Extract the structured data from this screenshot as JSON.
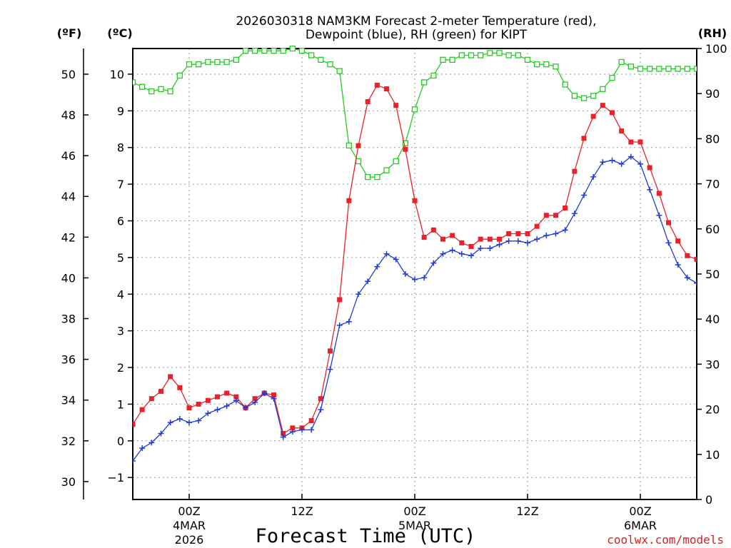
{
  "chart_data": {
    "type": "line",
    "title_line1": "2026030318 NAM3KM Forecast 2-meter Temperature (red),",
    "title_line2": "Dewpoint (blue), RH (green) for KIPT",
    "xlabel": "Forecast Time (UTC)",
    "watermark": "coolwx.com/models",
    "unit_f": "(ºF)",
    "unit_c": "(ºC)",
    "unit_rh": "(RH)",
    "x_start_hour": 18,
    "x_end_hour": 78,
    "c_axis": {
      "range": [
        -1.6,
        10.7
      ],
      "ticks": [
        -1,
        0,
        1,
        2,
        3,
        4,
        5,
        6,
        7,
        8,
        9,
        10
      ],
      "labels": [
        "−1",
        "0",
        "1",
        "2",
        "3",
        "4",
        "5",
        "6",
        "7",
        "8",
        "9",
        "10"
      ]
    },
    "f_axis": {
      "ticks": [
        30,
        32,
        34,
        36,
        38,
        40,
        42,
        44,
        46,
        48,
        50
      ],
      "labels": [
        "30",
        "32",
        "34",
        "36",
        "38",
        "40",
        "42",
        "44",
        "46",
        "48",
        "50"
      ]
    },
    "rh_axis": {
      "range": [
        0,
        100
      ],
      "ticks": [
        0,
        10,
        20,
        30,
        40,
        50,
        60,
        70,
        80,
        90,
        100
      ],
      "labels": [
        "0",
        "10",
        "20",
        "30",
        "40",
        "50",
        "60",
        "70",
        "80",
        "90",
        "100"
      ]
    },
    "x_ticks": [
      {
        "hour": 24,
        "line1": "00Z",
        "line2": "4MAR",
        "line3": "2026"
      },
      {
        "hour": 36,
        "line1": "12Z",
        "line2": "",
        "line3": ""
      },
      {
        "hour": 48,
        "line1": "00Z",
        "line2": "5MAR",
        "line3": ""
      },
      {
        "hour": 60,
        "line1": "12Z",
        "line2": "",
        "line3": ""
      },
      {
        "hour": 72,
        "line1": "00Z",
        "line2": "6MAR",
        "line3": ""
      }
    ],
    "colors": {
      "temperature": "#e8222a",
      "dewpoint": "#1f3bd8",
      "rh": "#22cc22",
      "grid": "#9a9a9a",
      "watermark": "#d62020"
    },
    "series": [
      {
        "name": "Temperature",
        "axis": "c",
        "values": [
          0.45,
          0.85,
          1.15,
          1.35,
          1.75,
          1.45,
          0.9,
          1.0,
          1.1,
          1.2,
          1.3,
          1.2,
          0.9,
          1.15,
          1.3,
          1.25,
          0.2,
          0.35,
          0.35,
          0.55,
          1.15,
          2.45,
          3.85,
          6.55,
          8.05,
          9.25,
          9.7,
          9.6,
          9.15,
          7.95,
          6.55,
          5.55,
          5.75,
          5.5,
          5.6,
          5.4,
          5.3,
          5.5,
          5.5,
          5.5,
          5.65,
          5.65,
          5.65,
          5.85,
          6.15,
          6.15,
          6.35,
          7.35,
          8.25,
          8.85,
          9.15,
          8.95,
          8.45,
          8.15,
          8.15,
          7.45,
          6.75,
          5.95,
          5.45,
          5.05,
          4.95
        ]
      },
      {
        "name": "Dewpoint",
        "axis": "c",
        "values": [
          -0.55,
          -0.2,
          -0.05,
          0.2,
          0.5,
          0.6,
          0.5,
          0.55,
          0.75,
          0.85,
          0.95,
          1.1,
          0.9,
          1.05,
          1.3,
          1.15,
          0.1,
          0.25,
          0.3,
          0.3,
          0.85,
          1.95,
          3.15,
          3.25,
          4.0,
          4.35,
          4.75,
          5.1,
          4.95,
          4.55,
          4.4,
          4.45,
          4.85,
          5.1,
          5.2,
          5.1,
          5.05,
          5.25,
          5.25,
          5.35,
          5.45,
          5.45,
          5.4,
          5.5,
          5.6,
          5.65,
          5.75,
          6.2,
          6.7,
          7.2,
          7.6,
          7.65,
          7.55,
          7.75,
          7.55,
          6.85,
          6.15,
          5.4,
          4.8,
          4.45,
          4.3
        ]
      },
      {
        "name": "RH",
        "axis": "rh",
        "values": [
          92.5,
          91.5,
          90.5,
          91,
          90.5,
          94,
          96.5,
          96.5,
          97,
          97,
          97,
          97.5,
          99.5,
          99.5,
          99.5,
          99.5,
          99.5,
          100,
          99.5,
          98.5,
          97.5,
          96.5,
          95,
          78.5,
          75,
          71.5,
          71.5,
          73,
          75,
          79,
          86.5,
          92.5,
          94,
          97.5,
          97.5,
          98.5,
          98.5,
          98.5,
          99,
          99,
          98.5,
          98.5,
          97.5,
          96.5,
          96.5,
          96,
          92,
          89.5,
          89,
          89.5,
          91,
          93.5,
          97,
          96,
          95.5,
          95.5,
          95.5,
          95.5,
          95.5,
          95.5,
          95.5
        ]
      }
    ]
  }
}
